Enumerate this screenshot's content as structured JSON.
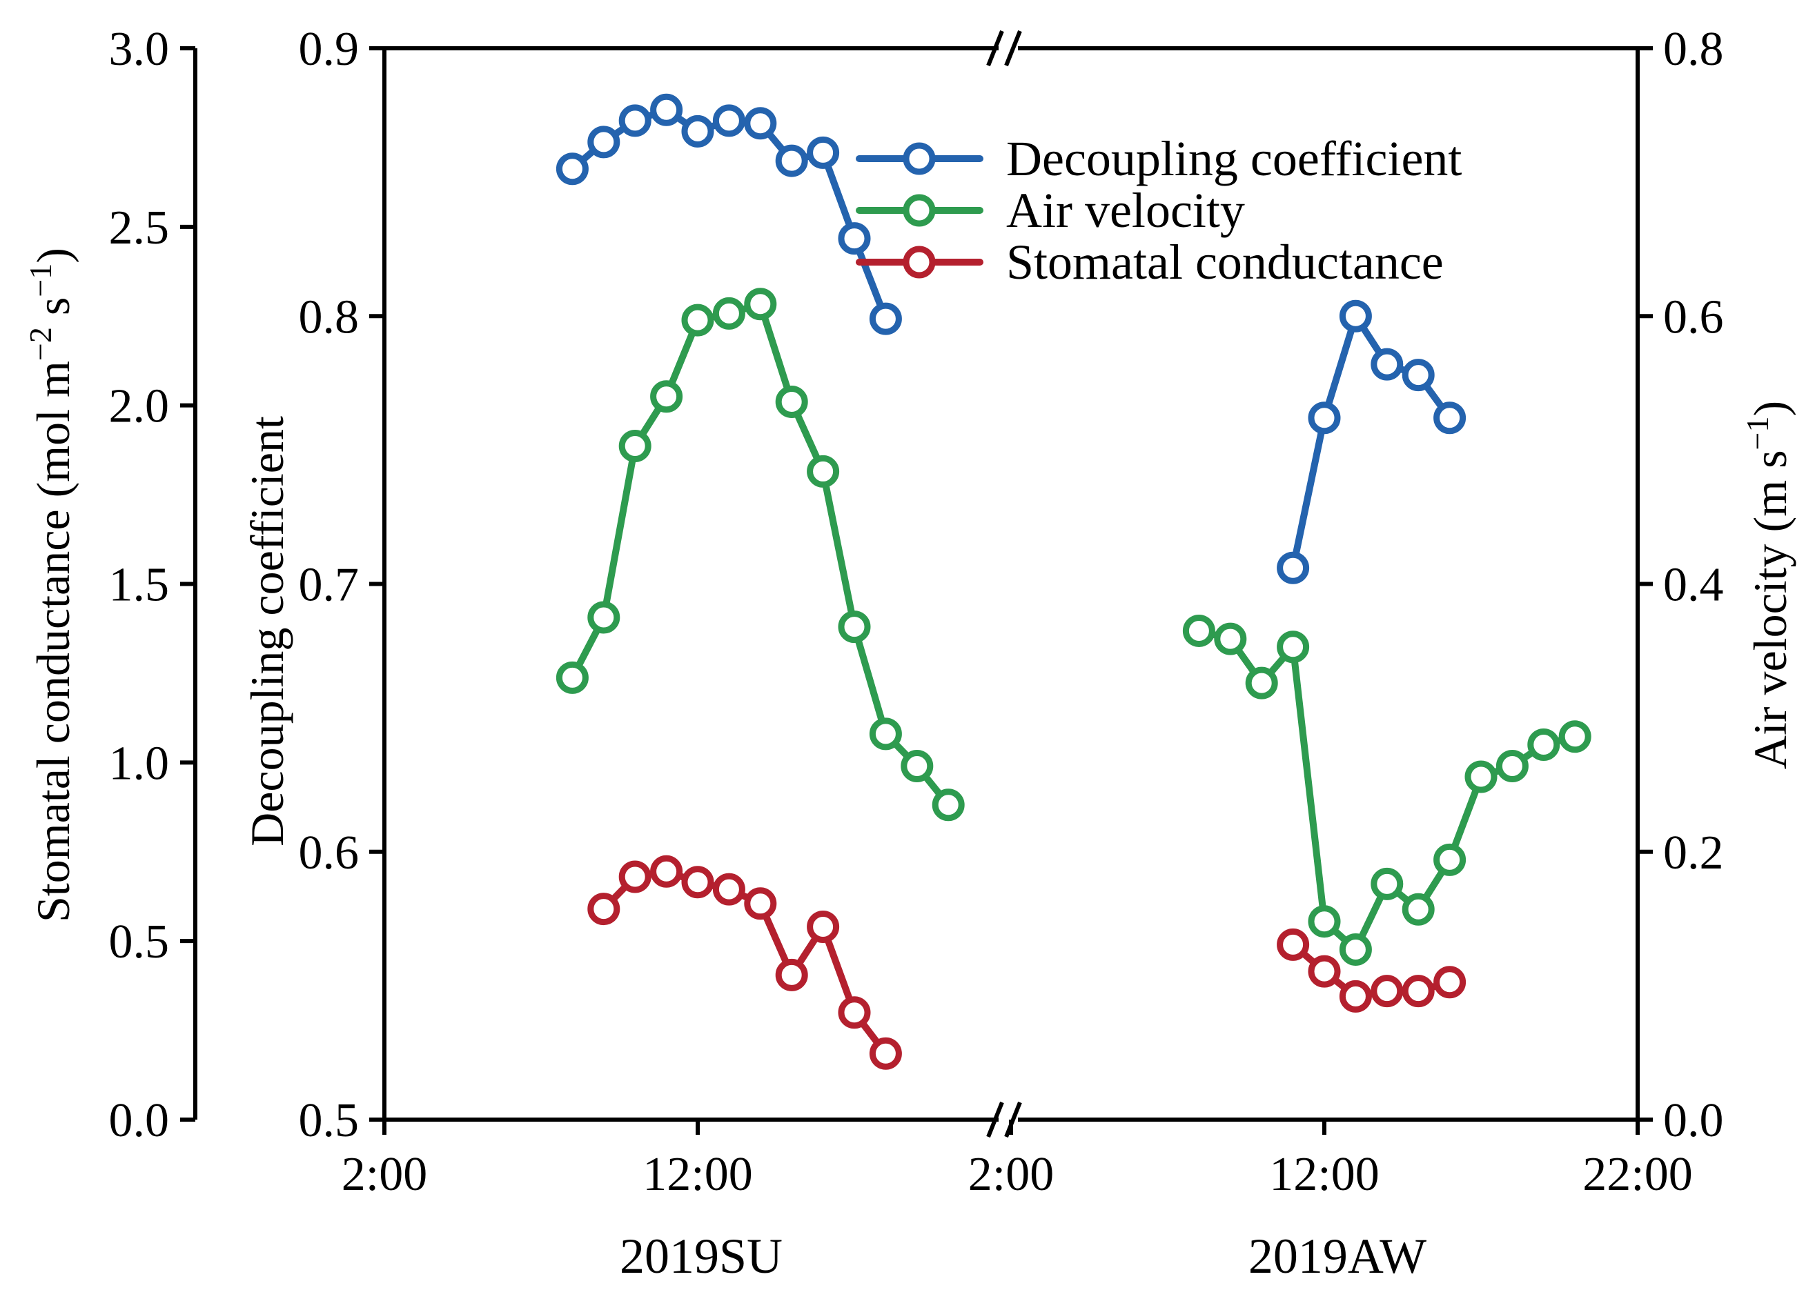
{
  "chart_data": {
    "type": "line",
    "x_tick_labels": [
      "2:00",
      "12:00",
      "2:00",
      "12:00",
      "22:00"
    ],
    "sessions": [
      "2019SU",
      "2019AW"
    ],
    "axes": {
      "left_outer": {
        "label": "Stomatal conductance  (mol m",
        "label_sup": "−2",
        "label_mid": " s",
        "label_sup2": "−1",
        "label_end": ")",
        "range": [
          0,
          3.0
        ],
        "ticks": [
          "0.0",
          "0.5",
          "1.0",
          "1.5",
          "2.0",
          "2.5",
          "3.0"
        ]
      },
      "left_inner": {
        "label": "Decoupling coefficient",
        "range": [
          0.5,
          0.9
        ],
        "ticks": [
          "0.5",
          "0.6",
          "0.7",
          "0.8",
          "0.9"
        ]
      },
      "right": {
        "label": "Air velocity (m s",
        "label_sup": "−1",
        "label_end": ")",
        "range": [
          0,
          0.8
        ],
        "ticks": [
          "0.0",
          "0.2",
          "0.4",
          "0.6",
          "0.8"
        ]
      }
    },
    "series": [
      {
        "name": "Decoupling coefficient",
        "axis": "left_inner",
        "color": "#2463AE",
        "segments": [
          {
            "session": "2019SU",
            "x_hours": [
              8,
              9,
              10,
              11,
              12,
              13,
              14,
              15,
              16,
              17,
              18
            ],
            "values": [
              0.855,
              0.865,
              0.873,
              0.877,
              0.869,
              0.873,
              0.872,
              0.858,
              0.861,
              0.829,
              0.799
            ]
          },
          {
            "session": "2019AW",
            "x_hours": [
              11,
              12,
              13,
              14,
              15,
              16
            ],
            "values": [
              0.706,
              0.762,
              0.8,
              0.782,
              0.778,
              0.762
            ]
          }
        ]
      },
      {
        "name": "Air velocity",
        "axis": "right",
        "color": "#2E9B4F",
        "segments": [
          {
            "session": "2019SU",
            "x_hours": [
              8,
              9,
              10,
              11,
              12,
              13,
              14,
              15,
              16,
              17,
              18,
              19,
              20
            ],
            "values": [
              0.33,
              0.375,
              0.503,
              0.54,
              0.597,
              0.602,
              0.609,
              0.536,
              0.484,
              0.368,
              0.288,
              0.264,
              0.235
            ]
          },
          {
            "session": "2019AW",
            "x_hours": [
              8,
              9,
              10,
              11,
              12,
              13,
              14,
              15,
              16,
              17,
              18,
              19,
              20
            ],
            "values": [
              0.365,
              0.359,
              0.326,
              0.353,
              0.148,
              0.127,
              0.176,
              0.157,
              0.194,
              0.256,
              0.264,
              0.28,
              0.286
            ]
          }
        ]
      },
      {
        "name": "Stomatal conductance",
        "axis": "left_outer",
        "color": "#B4202E",
        "segments": [
          {
            "session": "2019SU",
            "x_hours": [
              9,
              10,
              11,
              12,
              13,
              14,
              15,
              16,
              17,
              18
            ],
            "values": [
              0.59,
              0.68,
              0.695,
              0.665,
              0.645,
              0.605,
              0.405,
              0.54,
              0.3,
              0.185
            ]
          },
          {
            "session": "2019AW",
            "x_hours": [
              11,
              12,
              13,
              14,
              15,
              16
            ],
            "values": [
              0.49,
              0.415,
              0.345,
              0.36,
              0.36,
              0.385
            ]
          }
        ]
      }
    ],
    "legend": {
      "position": "top-right",
      "entries": [
        "Decoupling coefficient",
        "Air velocity",
        "Stomatal conductance"
      ]
    }
  }
}
